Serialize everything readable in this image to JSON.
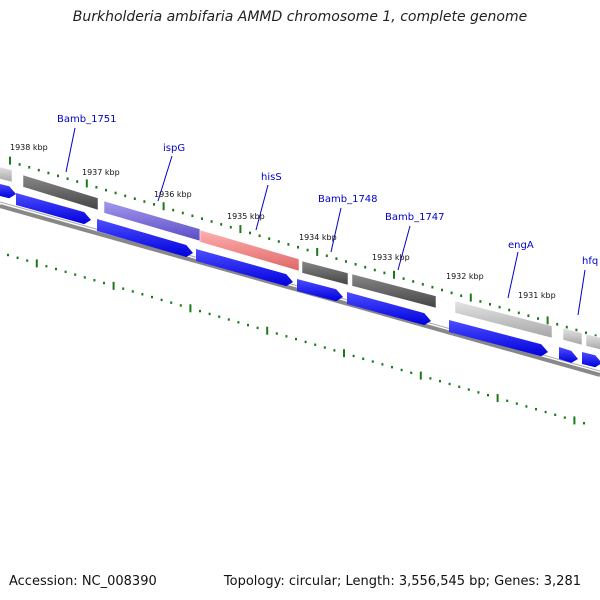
{
  "title": "Burkholderia ambifaria AMMD chromosome 1, complete genome",
  "footer": {
    "accession": "Accession: NC_008390",
    "stats": "Topology: circular; Length: 3,556,545 bp; Genes: 3,281"
  },
  "colors": {
    "gene_label": "#0000cc",
    "cds_arrow": "#0000ee",
    "feature_dark": "#555555",
    "feature_light": "#bbbbbb",
    "feature_purple": "#6655cc",
    "feature_pink": "#ee7777",
    "tick": "#1a7a1a",
    "backbone": "#888888"
  },
  "gene_labels": [
    "Bamb_1751",
    "ispG",
    "hisS",
    "Bamb_1748",
    "Bamb_1747",
    "engA",
    "hfq"
  ],
  "kbp_labels": [
    "1938 kbp",
    "1937 kbp",
    "1936 kbp",
    "1935 kbp",
    "1934 kbp",
    "1933 kbp",
    "1932 kbp",
    "1931 kbp"
  ]
}
